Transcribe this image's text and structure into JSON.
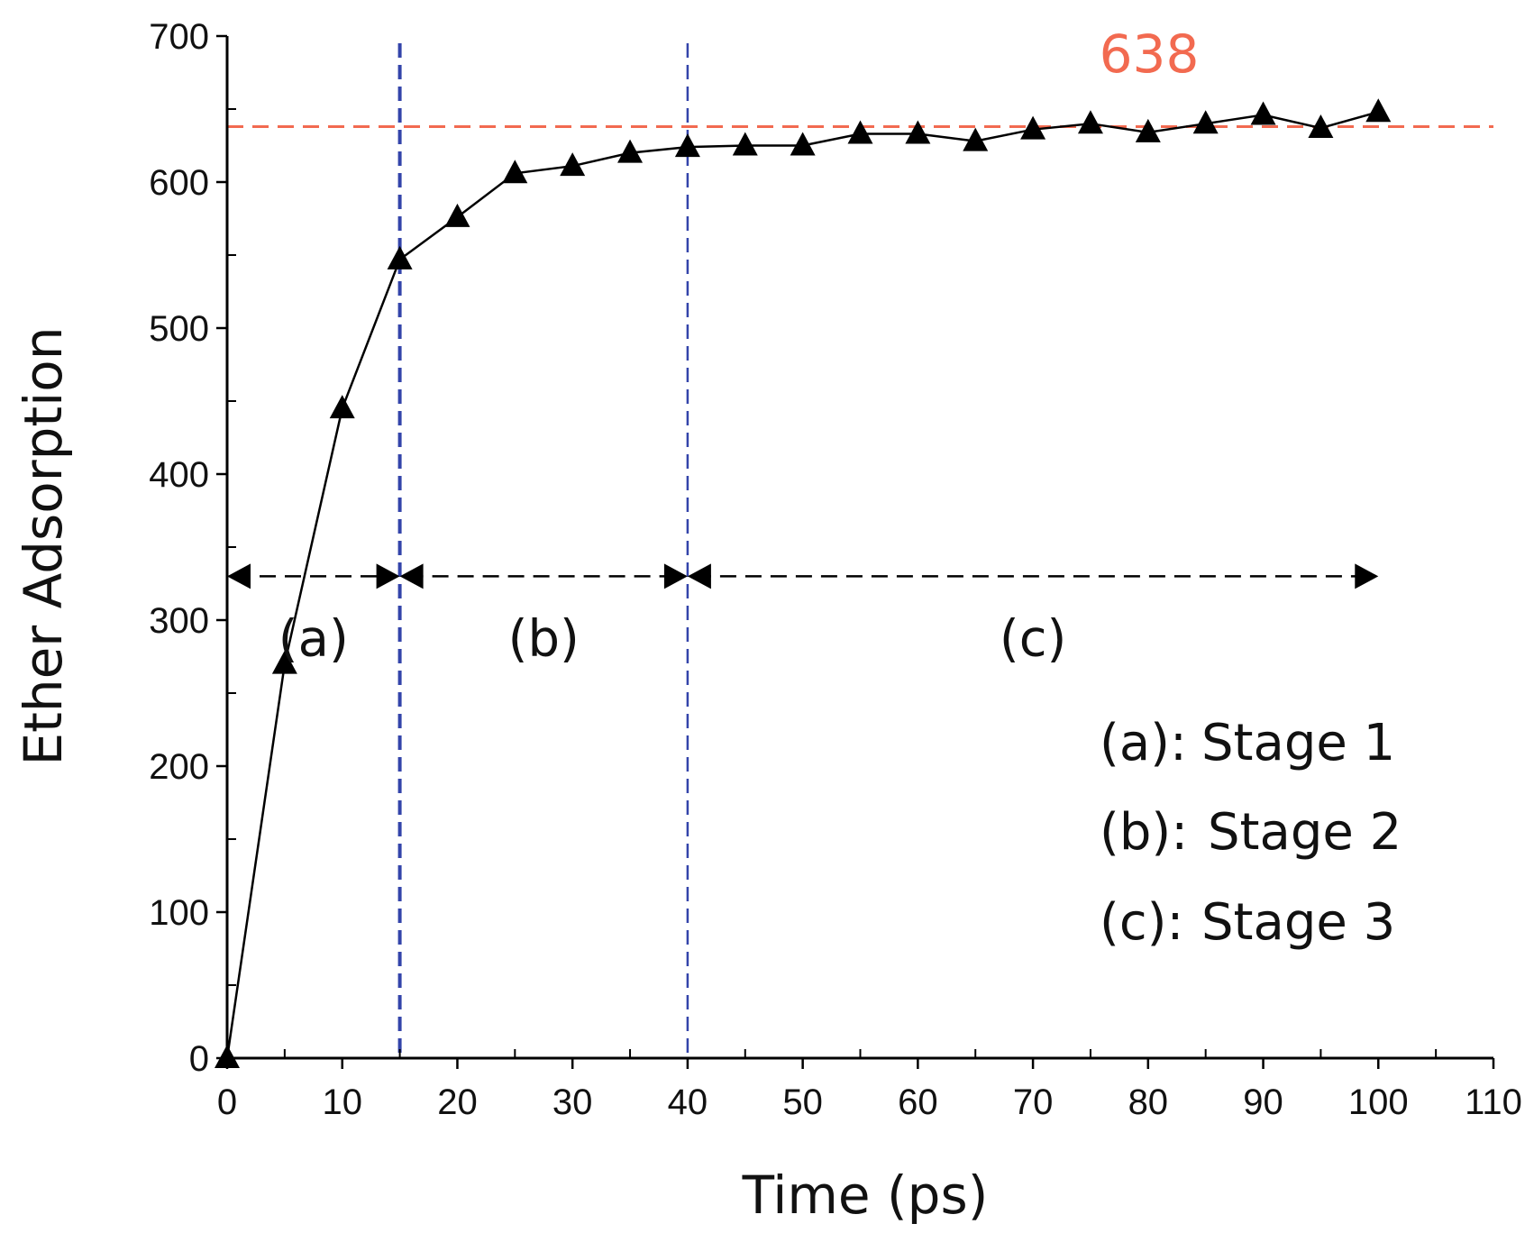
{
  "chart_data": {
    "type": "line",
    "title": "",
    "xlabel": "Time (ps)",
    "ylabel": "Ether Adsorption",
    "xlim": [
      0,
      110
    ],
    "ylim": [
      0,
      700
    ],
    "xticks": [
      0,
      10,
      20,
      30,
      40,
      50,
      60,
      70,
      80,
      90,
      100,
      110
    ],
    "yticks": [
      0,
      100,
      200,
      300,
      400,
      500,
      600,
      700
    ],
    "series": [
      {
        "name": "Ether Adsorption",
        "marker": "triangle",
        "color": "#000000",
        "x": [
          0,
          5,
          10,
          15,
          20,
          25,
          30,
          35,
          40,
          45,
          50,
          55,
          60,
          65,
          70,
          75,
          80,
          85,
          90,
          95,
          100
        ],
        "y": [
          0,
          270,
          445,
          547,
          576,
          606,
          611,
          620,
          624,
          625,
          625,
          633,
          633,
          628,
          636,
          640,
          634,
          640,
          646,
          637,
          648
        ]
      }
    ],
    "reference_line": {
      "y": 638,
      "label": "638",
      "color": "#f26a50"
    },
    "stage_boundaries": {
      "x": [
        15,
        40
      ],
      "color": "#3344aa"
    },
    "stage_arrow_y": 330,
    "stages": [
      {
        "label": "(a)",
        "x_start": 0,
        "x_end": 15
      },
      {
        "label": "(b)",
        "x_start": 15,
        "x_end": 40
      },
      {
        "label": "(c)",
        "x_start": 40,
        "x_end": 100
      }
    ],
    "legend": {
      "placement": "bottom-right",
      "entries": [
        {
          "key": "(a):",
          "text": "Stage 1"
        },
        {
          "key": "(b):",
          "text": "Stage 2"
        },
        {
          "key": "(c):",
          "text": "Stage 3"
        }
      ]
    }
  }
}
